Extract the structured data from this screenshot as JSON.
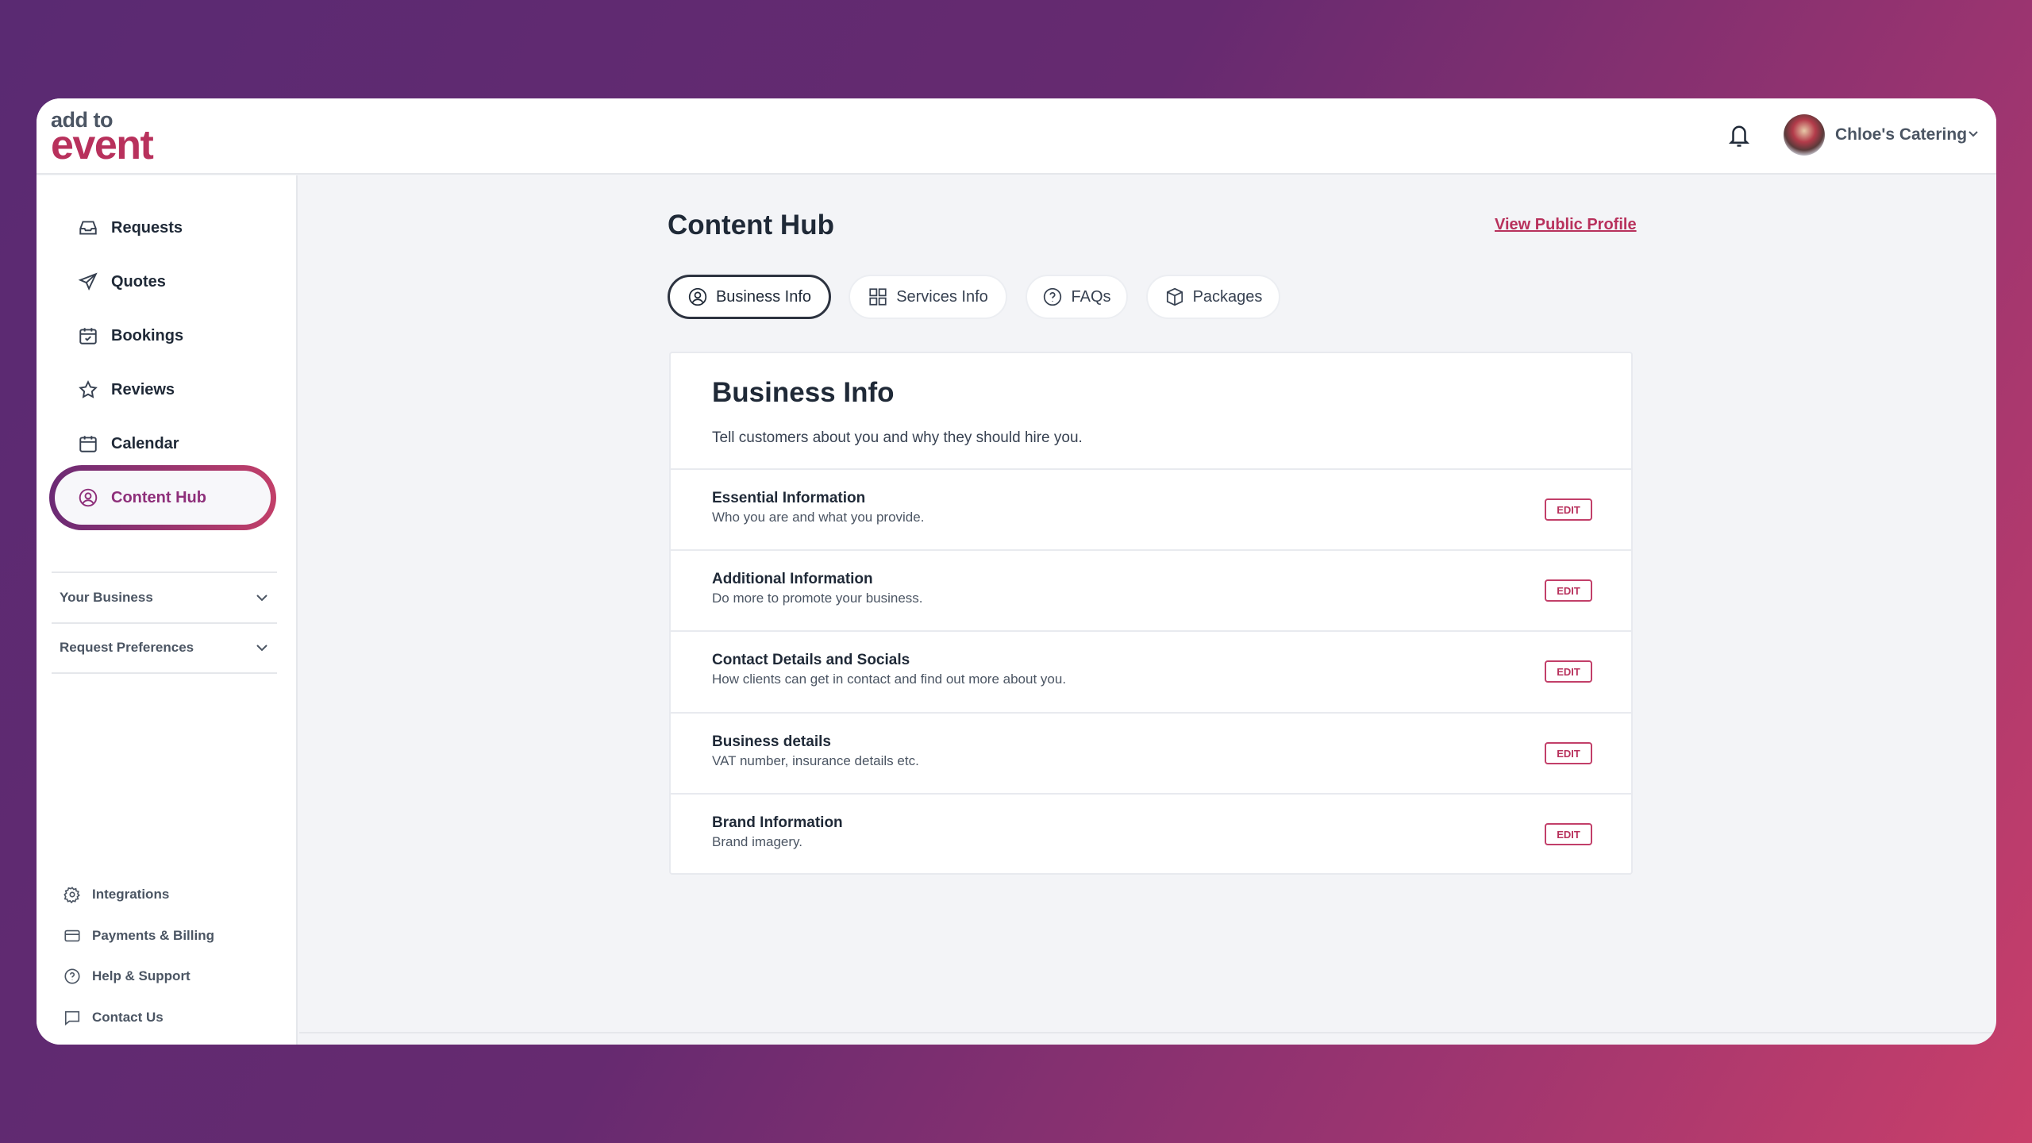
{
  "brand": {
    "logo_top": "add to",
    "logo_bottom": "event",
    "accent": "#b8315c"
  },
  "header": {
    "user_name": "Chloe's Catering"
  },
  "sidebar": {
    "items": [
      {
        "label": "Requests",
        "icon": "inbox-icon"
      },
      {
        "label": "Quotes",
        "icon": "send-icon"
      },
      {
        "label": "Bookings",
        "icon": "calendar-check-icon"
      },
      {
        "label": "Reviews",
        "icon": "star-icon"
      },
      {
        "label": "Calendar",
        "icon": "calendar-icon"
      },
      {
        "label": "Content Hub",
        "icon": "user-circle-icon",
        "active": true
      }
    ],
    "groups": [
      {
        "label": "Your Business"
      },
      {
        "label": "Request Preferences"
      }
    ],
    "footer": [
      {
        "label": "Integrations",
        "icon": "gear-icon"
      },
      {
        "label": "Payments & Billing",
        "icon": "credit-card-icon"
      },
      {
        "label": "Help & Support",
        "icon": "help-circle-icon"
      },
      {
        "label": "Contact Us",
        "icon": "chat-icon"
      }
    ]
  },
  "main": {
    "title": "Content Hub",
    "public_link": "View Public Profile",
    "tabs": [
      {
        "label": "Business Info",
        "active": true
      },
      {
        "label": "Services Info"
      },
      {
        "label": "FAQs"
      },
      {
        "label": "Packages"
      }
    ],
    "card": {
      "title": "Business Info",
      "subtitle": "Tell customers about you and why they should hire you.",
      "edit_label": "EDIT",
      "rows": [
        {
          "title": "Essential Information",
          "desc": "Who you are and what you provide."
        },
        {
          "title": "Additional Information",
          "desc": "Do more to promote your business."
        },
        {
          "title": "Contact Details and Socials",
          "desc": "How clients can get in contact and find out more about you."
        },
        {
          "title": "Business details",
          "desc": "VAT number, insurance details etc."
        },
        {
          "title": "Brand Information",
          "desc": "Brand imagery."
        }
      ]
    }
  }
}
